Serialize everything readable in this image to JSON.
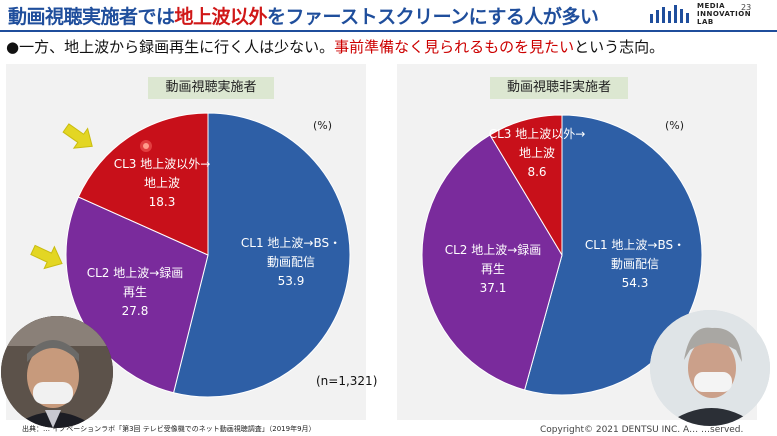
{
  "header": {
    "title_part1": "動画視聴実施者では",
    "title_highlight": "地上波以外",
    "title_part2": "をファーストスクリーンにする人が多い",
    "logo_lines": [
      "MEDIA",
      "INNOVATION",
      "LAB"
    ],
    "page_number": "23"
  },
  "bullet": {
    "text_part1": "●一方、地上波から録画再生に行く人は少ない。",
    "text_highlight": "事前準備なく見られるものを見たい",
    "text_part2": "という志向。"
  },
  "chart_data": [
    {
      "type": "pie",
      "title": "動画視聴実施者",
      "unit": "(%)",
      "categories": [
        "CL1 地上波→BS・動画配信",
        "CL2 地上波→録画再生",
        "CL3 地上波以外→地上波"
      ],
      "values": [
        53.9,
        27.8,
        18.3
      ],
      "colors": [
        "#2e5fa6",
        "#7a2b9c",
        "#c8101a"
      ],
      "n_label": "(n=1,321)"
    },
    {
      "type": "pie",
      "title": "動画視聴非実施者",
      "unit": "(%)",
      "categories": [
        "CL1 地上波→BS・動画配信",
        "CL2 地上波→録画再生",
        "CL3 地上波以外→地上波"
      ],
      "values": [
        54.3,
        37.1,
        8.6
      ],
      "colors": [
        "#2e5fa6",
        "#7a2b9c",
        "#c8101a"
      ]
    }
  ],
  "labels": {
    "left": {
      "cl1_line1": "CL1 地上波→BS・",
      "cl1_line2": "動画配信",
      "cl1_value": "53.9",
      "cl2_line1": "CL2 地上波→録画",
      "cl2_line2": "再生",
      "cl2_value": "27.8",
      "cl3_line1": "CL3 地上波以外→",
      "cl3_line2": "地上波",
      "cl3_value": "18.3"
    },
    "right": {
      "cl1_line1": "CL1 地上波→BS・",
      "cl1_line2": "動画配信",
      "cl1_value": "54.3",
      "cl2_line1": "CL2 地上波→録画",
      "cl2_line2": "再生",
      "cl2_value": "37.1",
      "cl3_line1": "CL3 地上波以外→",
      "cl3_line2": "地上波",
      "cl3_value": "8.6"
    }
  },
  "footer": {
    "source": "出典：… イノベーションラボ「第3回 テレビ受像機でのネット動画視聴調査」（2019年9月）",
    "copyright": "Copyright© 2021 DENTSU INC. A… …served."
  },
  "colors": {
    "accent": "#1f4e9c",
    "highlight": "#d01818",
    "header_bg": "#dce7d1",
    "arrow": "#e3d623"
  },
  "icons": [
    "yellow-arrow-icon",
    "red-pointer-icon"
  ]
}
